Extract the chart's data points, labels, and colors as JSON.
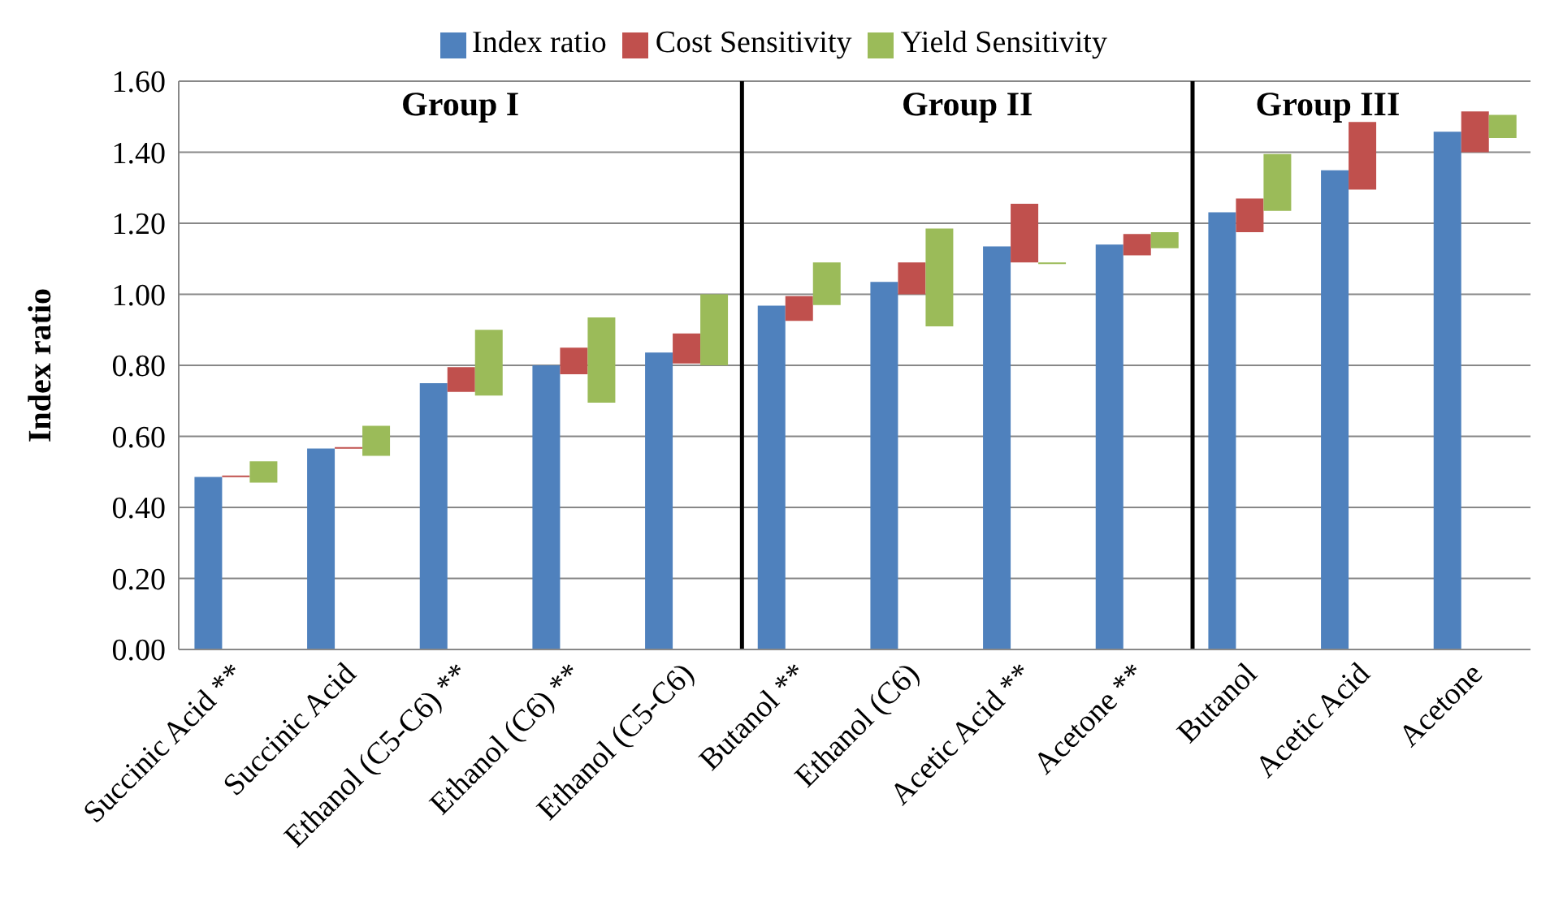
{
  "chart_data": {
    "type": "bar",
    "ylabel": "Index ratio",
    "categories": [
      "Succinic Acid **",
      "Succinic Acid",
      "Ethanol (C5-C6) **",
      "Ethanol (C6) **",
      "Ethanol (C5-C6)",
      "Butanol **",
      "Ethanol (C6)",
      "Acetic Acid **",
      "Acetone **",
      "Butanol",
      "Acetic Acid",
      "Acetone"
    ],
    "series": [
      {
        "name": "Index ratio",
        "color": "#4f81bd",
        "values": [
          0.486,
          0.566,
          0.75,
          0.8,
          0.836,
          0.968,
          1.035,
          1.135,
          1.14,
          1.231,
          1.349,
          1.458
        ]
      },
      {
        "name": "Cost Sensitivity",
        "color": "#c0504d",
        "base": [
          0.485,
          0.565,
          0.725,
          0.775,
          0.805,
          0.925,
          1.0,
          1.09,
          1.11,
          1.175,
          1.295,
          1.4
        ],
        "values": [
          0.005,
          0.005,
          0.07,
          0.075,
          0.085,
          0.07,
          0.09,
          0.165,
          0.06,
          0.095,
          0.19,
          0.115
        ]
      },
      {
        "name": "Yield Sensitivity",
        "color": "#9bbb59",
        "base": [
          0.47,
          0.545,
          0.715,
          0.695,
          0.8,
          0.97,
          0.91,
          1.085,
          1.13,
          1.235,
          null,
          1.44
        ],
        "values": [
          0.06,
          0.085,
          0.185,
          0.24,
          0.2,
          0.12,
          0.275,
          0.005,
          0.045,
          0.16,
          null,
          0.065
        ]
      }
    ],
    "ylim": [
      0,
      1.6
    ],
    "yticks": [
      {
        "value": 0,
        "label": "0.00"
      },
      {
        "value": 0.2,
        "label": "0.20"
      },
      {
        "value": 0.4,
        "label": "0.40"
      },
      {
        "value": 0.6,
        "label": "0.60"
      },
      {
        "value": 0.8,
        "label": "0.80"
      },
      {
        "value": 1.0,
        "label": "1.00"
      },
      {
        "value": 1.2,
        "label": "1.20"
      },
      {
        "value": 1.4,
        "label": "1.40"
      },
      {
        "value": 1.6,
        "label": "1.60"
      }
    ],
    "annotations": [
      "Group I",
      "Group II",
      "Group III"
    ],
    "grid": "y",
    "legend": "top"
  }
}
